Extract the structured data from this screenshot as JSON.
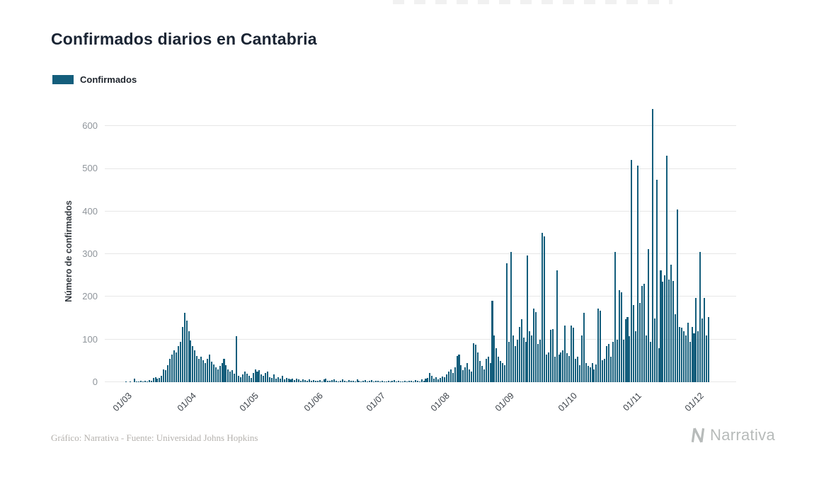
{
  "page": {
    "title": "Confirmados diarios en Cantabria",
    "footer_source": "Gráfico: Narrativa - Fuente: Universidad Johns Hopkins",
    "brand": "Narrativa"
  },
  "legend": {
    "label": "Confirmados",
    "color": "#145e7c"
  },
  "chart_data": {
    "type": "bar",
    "title": "Confirmados diarios en Cantabria",
    "xlabel": "",
    "ylabel": "Número de confirmados",
    "series_name": "Confirmados",
    "bar_color": "#145e7c",
    "grid": true,
    "legend_position": "top-left",
    "ylim": [
      0,
      660
    ],
    "yticks": [
      0,
      100,
      200,
      300,
      400,
      500,
      600
    ],
    "x_frequency": "daily",
    "x_start_date": "2020-02-20",
    "xtick_labels": [
      "01/03",
      "01/04",
      "01/05",
      "01/06",
      "01/07",
      "01/08",
      "01/09",
      "01/10",
      "01/11",
      "01/12"
    ],
    "xtick_indices": [
      10,
      41,
      71,
      102,
      132,
      163,
      194,
      224,
      255,
      285
    ],
    "values": [
      0,
      0,
      0,
      0,
      0,
      0,
      0,
      0,
      0,
      0,
      1,
      0,
      2,
      0,
      8,
      2,
      1,
      3,
      2,
      4,
      2,
      5,
      3,
      10,
      12,
      8,
      10,
      15,
      30,
      28,
      40,
      55,
      65,
      75,
      70,
      85,
      95,
      130,
      163,
      145,
      120,
      98,
      85,
      75,
      62,
      55,
      60,
      52,
      45,
      55,
      65,
      48,
      42,
      35,
      30,
      38,
      45,
      55,
      40,
      30,
      25,
      28,
      20,
      107,
      15,
      12,
      18,
      25,
      20,
      15,
      10,
      22,
      30,
      25,
      28,
      18,
      15,
      22,
      25,
      12,
      10,
      18,
      8,
      12,
      9,
      15,
      7,
      10,
      8,
      6,
      9,
      5,
      8,
      6,
      4,
      7,
      5,
      4,
      6,
      3,
      5,
      4,
      3,
      5,
      2,
      6,
      8,
      4,
      3,
      5,
      7,
      3,
      2,
      4,
      6,
      3,
      2,
      5,
      3,
      4,
      2,
      6,
      3,
      2,
      4,
      5,
      2,
      3,
      5,
      2,
      4,
      3,
      2,
      3,
      1,
      2,
      4,
      2,
      3,
      5,
      2,
      3,
      1,
      2,
      3,
      2,
      4,
      3,
      2,
      5,
      3,
      2,
      6,
      4,
      8,
      10,
      22,
      15,
      8,
      12,
      6,
      10,
      14,
      12,
      18,
      25,
      30,
      22,
      35,
      62,
      65,
      40,
      28,
      35,
      45,
      30,
      25,
      92,
      88,
      70,
      50,
      38,
      30,
      55,
      60,
      45,
      190,
      110,
      80,
      60,
      50,
      45,
      40,
      278,
      95,
      305,
      110,
      85,
      100,
      130,
      147,
      105,
      95,
      297,
      120,
      110,
      172,
      165,
      90,
      100,
      350,
      342,
      65,
      70,
      122,
      125,
      60,
      262,
      65,
      70,
      75,
      132,
      68,
      62,
      132,
      128,
      55,
      60,
      40,
      110,
      162,
      45,
      38,
      35,
      45,
      30,
      42,
      172,
      168,
      52,
      55,
      85,
      90,
      60,
      95,
      305,
      100,
      215,
      210,
      100,
      148,
      152,
      108,
      520,
      180,
      120,
      508,
      185,
      225,
      230,
      110,
      312,
      95,
      640,
      150,
      475,
      80,
      262,
      235,
      250,
      530,
      240,
      275,
      237,
      160,
      405,
      130,
      128,
      120,
      110,
      140,
      95,
      130,
      115,
      198,
      120,
      305,
      150,
      198,
      110,
      152
    ]
  }
}
